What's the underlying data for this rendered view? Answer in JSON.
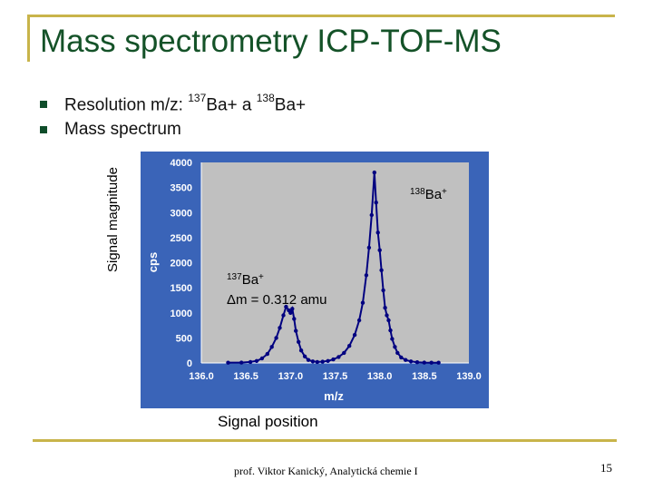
{
  "slide": {
    "title": "Mass spectrometry ICP-TOF-MS",
    "bullets": [
      {
        "prefix": "Resolution m/z: ",
        "sup1": "137",
        "mid": "Ba+ a ",
        "sup2": "138",
        "suffix": "Ba+"
      },
      {
        "text": "Mass spectrum"
      }
    ],
    "outer_ylabel": "Signal magnitude",
    "outer_xlabel": "Signal position",
    "footer": "prof. Viktor Kanický, Analytická chemie I",
    "page_number": "15"
  },
  "colors": {
    "frame": "#c8b44a",
    "title": "#145228",
    "plot_bg": "#3a64b8",
    "plot_area": "#c0c0c0",
    "series": "#000080",
    "tick_text": "#ffffff"
  },
  "chart_data": {
    "type": "line",
    "xlabel": "m/z",
    "ylabel": "cps",
    "xlim": [
      136.0,
      139.0
    ],
    "ylim": [
      0,
      4000
    ],
    "xticks": [
      "136.0",
      "136.5",
      "137.0",
      "137.5",
      "138.0",
      "138.5",
      "139.0"
    ],
    "yticks": [
      "0",
      "500",
      "1000",
      "1500",
      "2000",
      "2500",
      "3000",
      "3500",
      "4000"
    ],
    "grid": false,
    "annotations": [
      {
        "text": "138Ba+",
        "sup": "138",
        "base": "Ba",
        "charge": "+"
      },
      {
        "text": "137Ba+",
        "sup": "137",
        "base": "Ba",
        "charge": "+"
      },
      {
        "text": "Δm = 0.312 amu"
      }
    ],
    "series": [
      {
        "x": [
          136.3,
          136.45,
          136.55,
          136.62,
          136.68,
          136.74,
          136.79,
          136.84,
          136.88,
          136.92,
          136.95,
          136.98,
          137.0,
          137.02,
          137.04,
          137.06,
          137.09,
          137.12,
          137.16,
          137.2,
          137.25,
          137.3,
          137.36,
          137.42,
          137.48,
          137.54,
          137.6,
          137.66,
          137.72,
          137.77,
          137.81,
          137.85,
          137.88,
          137.91,
          137.94,
          137.96,
          137.98,
          138.0,
          138.02,
          138.04,
          138.06,
          138.08,
          138.1,
          138.12,
          138.14,
          138.17,
          138.2,
          138.24,
          138.29,
          138.35,
          138.42,
          138.5,
          138.58,
          138.66
        ],
        "y": [
          5,
          8,
          20,
          40,
          90,
          180,
          320,
          500,
          700,
          950,
          1120,
          1050,
          1000,
          1080,
          880,
          640,
          420,
          250,
          130,
          60,
          30,
          20,
          25,
          40,
          70,
          120,
          200,
          340,
          560,
          850,
          1200,
          1750,
          2300,
          2950,
          3800,
          3200,
          2600,
          2250,
          1850,
          1450,
          1100,
          950,
          850,
          650,
          480,
          320,
          200,
          110,
          60,
          30,
          15,
          8,
          5,
          5
        ]
      }
    ]
  }
}
